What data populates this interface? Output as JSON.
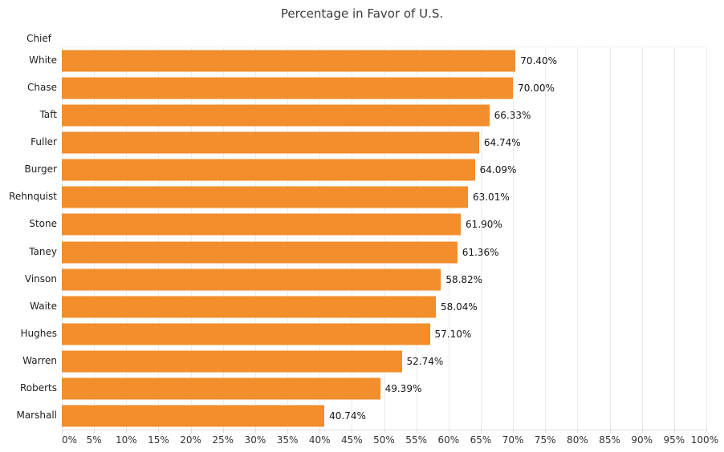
{
  "chart_data": {
    "type": "bar",
    "orientation": "horizontal",
    "title": "Percentage in Favor of U.S.",
    "category_axis_label": "Chief",
    "categories": [
      "White",
      "Chase",
      "Taft",
      "Fuller",
      "Burger",
      "Rehnquist",
      "Stone",
      "Taney",
      "Vinson",
      "Waite",
      "Hughes",
      "Warren",
      "Roberts",
      "Marshall"
    ],
    "values": [
      70.4,
      70.0,
      66.33,
      64.74,
      64.09,
      63.01,
      61.9,
      61.36,
      58.82,
      58.04,
      57.1,
      52.74,
      49.39,
      40.74
    ],
    "value_labels": [
      "70.40%",
      "70.00%",
      "66.33%",
      "64.74%",
      "64.09%",
      "63.01%",
      "61.90%",
      "61.36%",
      "58.82%",
      "58.04%",
      "57.10%",
      "52.74%",
      "49.39%",
      "40.74%"
    ],
    "xlim": [
      0,
      100
    ],
    "x_tick_step": 5,
    "x_tick_labels": [
      "0%",
      "5%",
      "10%",
      "15%",
      "20%",
      "25%",
      "30%",
      "35%",
      "40%",
      "45%",
      "50%",
      "55%",
      "60%",
      "65%",
      "70%",
      "75%",
      "80%",
      "85%",
      "90%",
      "95%",
      "100%"
    ],
    "grid": "vertical",
    "legend": "none",
    "colors": {
      "bar": "#F28E2B",
      "gridline": "#ECECEC",
      "axis_line": "#E1E1E1",
      "tick": "#D8D8D8",
      "title_text": "#3C3C3C",
      "category_text": "#1E1E1E",
      "value_text": "#151515",
      "tick_text": "#333333"
    }
  }
}
